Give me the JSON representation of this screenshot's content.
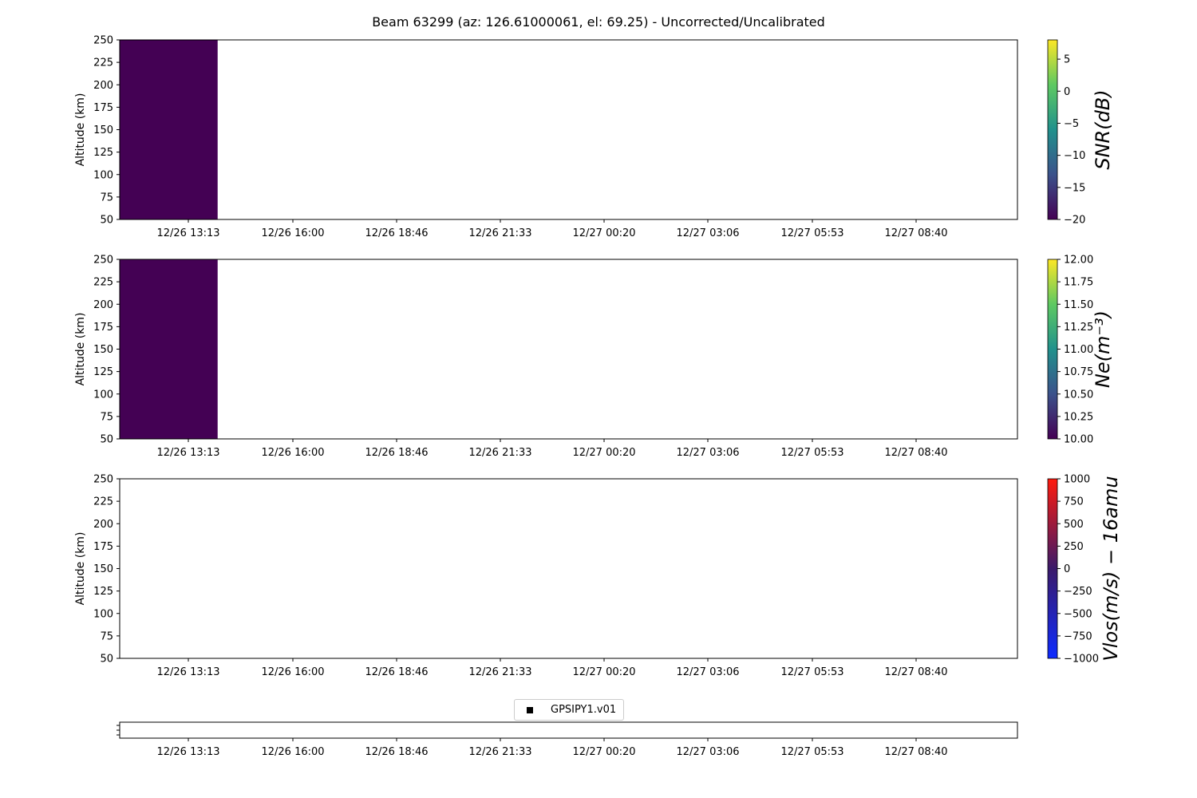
{
  "figure": {
    "title": "Beam 63299 (az: 126.61000061, el: 69.25) - Uncorrected/Uncalibrated"
  },
  "chart_data": [
    {
      "type": "heatmap",
      "name": "snr",
      "ylabel": "Altitude (km)",
      "ylim": [
        50,
        250
      ],
      "yticks": [
        50,
        75,
        100,
        125,
        150,
        175,
        200,
        225,
        250
      ],
      "xticks": [
        "12/26 13:13",
        "12/26 16:00",
        "12/26 18:46",
        "12/26 21:33",
        "12/27 00:20",
        "12/27 03:06",
        "12/27 05:53",
        "12/27 08:40"
      ],
      "data_blocks": [
        {
          "x_start": "12/26 11:20",
          "x_end": "12/26 14:00",
          "y_start": 50,
          "y_end": 250,
          "value": -20
        }
      ],
      "colorbar": {
        "label": "SNR(dB)",
        "colormap": "viridis",
        "range": [
          -20,
          8
        ],
        "ticks": [
          "5",
          "0",
          "−5",
          "−10",
          "−15",
          "−20"
        ],
        "tick_values": [
          5,
          0,
          -5,
          -10,
          -15,
          -20
        ]
      }
    },
    {
      "type": "heatmap",
      "name": "ne",
      "ylabel": "Altitude (km)",
      "ylim": [
        50,
        250
      ],
      "yticks": [
        50,
        75,
        100,
        125,
        150,
        175,
        200,
        225,
        250
      ],
      "xticks": [
        "12/26 13:13",
        "12/26 16:00",
        "12/26 18:46",
        "12/26 21:33",
        "12/27 00:20",
        "12/27 03:06",
        "12/27 05:53",
        "12/27 08:40"
      ],
      "data_blocks": [
        {
          "x_start": "12/26 11:20",
          "x_end": "12/26 14:00",
          "y_start": 50,
          "y_end": 250,
          "value": 10.0
        }
      ],
      "colorbar": {
        "label": "Ne(m⁻³)",
        "colormap": "viridis",
        "range": [
          10.0,
          12.0
        ],
        "ticks": [
          "12.00",
          "11.75",
          "11.50",
          "11.25",
          "11.00",
          "10.75",
          "10.50",
          "10.25",
          "10.00"
        ],
        "tick_values": [
          12.0,
          11.75,
          11.5,
          11.25,
          11.0,
          10.75,
          10.5,
          10.25,
          10.0
        ]
      }
    },
    {
      "type": "heatmap",
      "name": "vlos",
      "ylabel": "Altitude (km)",
      "ylim": [
        50,
        250
      ],
      "yticks": [
        50,
        75,
        100,
        125,
        150,
        175,
        200,
        225,
        250
      ],
      "xticks": [
        "12/26 13:13",
        "12/26 16:00",
        "12/26 18:46",
        "12/26 21:33",
        "12/27 00:20",
        "12/27 03:06",
        "12/27 05:53",
        "12/27 08:40"
      ],
      "data_blocks": [],
      "colorbar": {
        "label": "Vlos(m/s) − 16amu",
        "colormap": "bwr-dark",
        "range": [
          -1000,
          1000
        ],
        "ticks": [
          "1000",
          "750",
          "500",
          "250",
          "0",
          "−250",
          "−500",
          "−750",
          "−1000"
        ],
        "tick_values": [
          1000,
          750,
          500,
          250,
          0,
          -250,
          -500,
          -750,
          -1000
        ]
      }
    },
    {
      "type": "scatter",
      "name": "gps",
      "xticks": [
        "12/26 13:13",
        "12/26 16:00",
        "12/26 18:46",
        "12/26 21:33",
        "12/27 00:20",
        "12/27 03:06",
        "12/27 05:53",
        "12/27 08:40"
      ],
      "legend": {
        "label": "GPSIPY1.v01",
        "marker": "square",
        "color": "#000000",
        "placement": "top-center"
      }
    }
  ]
}
